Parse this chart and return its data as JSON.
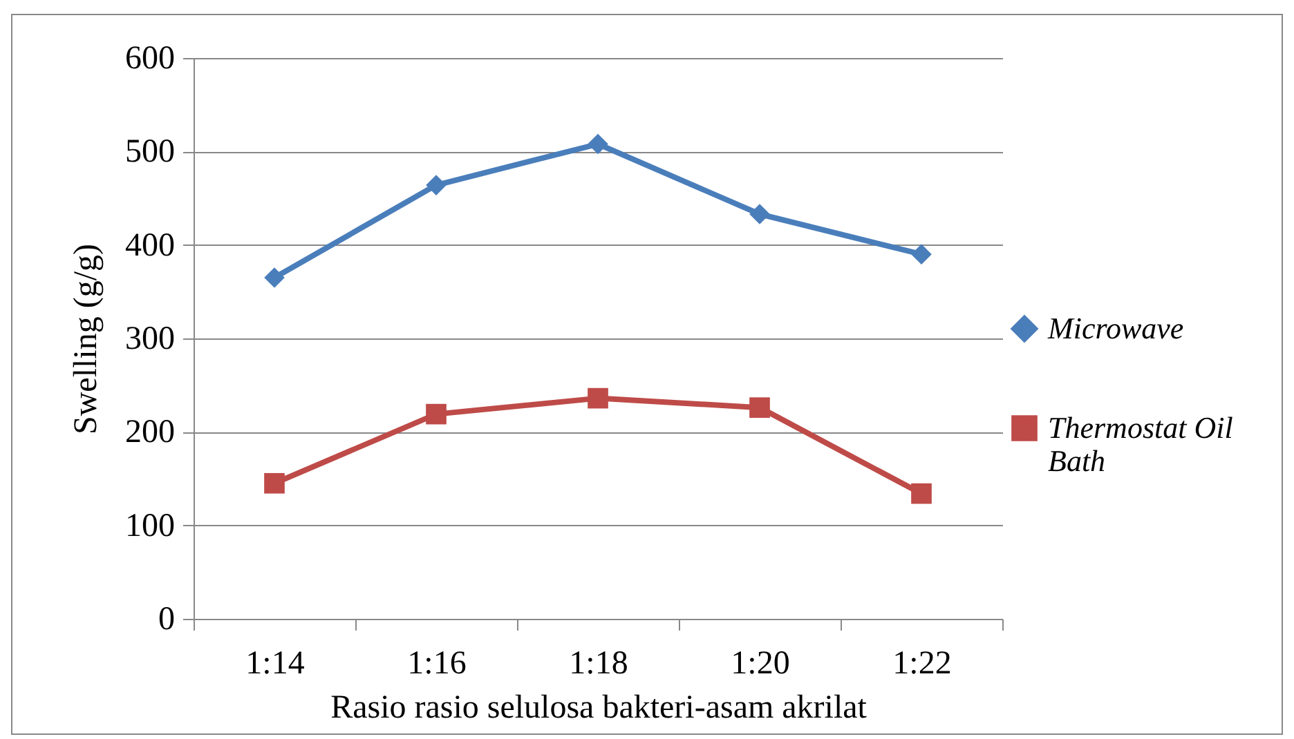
{
  "chart_data": {
    "type": "line",
    "xlabel": "Rasio rasio selulosa bakteri-asam akrilat",
    "ylabel": "Swelling (g/g)",
    "categories": [
      "1:14",
      "1:16",
      "1:18",
      "1:20",
      "1:22"
    ],
    "series": [
      {
        "name": "Microwave",
        "color": "#4a7ebb",
        "marker": "diamond",
        "values": [
          365,
          464,
          508,
          433,
          390
        ]
      },
      {
        "name": "Thermostat Oil Bath",
        "color": "#be4b48",
        "marker": "square",
        "values": [
          145,
          219,
          236,
          226,
          134
        ]
      }
    ],
    "ylim": [
      0,
      600
    ],
    "yticks": [
      0,
      100,
      200,
      300,
      400,
      500,
      600
    ],
    "grid": "y",
    "legend": "right",
    "line_style": "solid"
  }
}
